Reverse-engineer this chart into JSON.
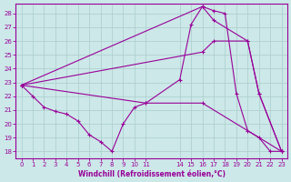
{
  "xlabel": "Windchill (Refroidissement éolien,°C)",
  "bg_color": "#cce8e8",
  "line_color": "#990099",
  "grid_color": "#aacccc",
  "xlim": [
    -0.5,
    23.5
  ],
  "ylim": [
    17.5,
    28.7
  ],
  "xticks": [
    0,
    1,
    2,
    3,
    4,
    5,
    6,
    7,
    8,
    9,
    10,
    11,
    14,
    15,
    16,
    17,
    18,
    19,
    20,
    21,
    22,
    23
  ],
  "yticks": [
    18,
    19,
    20,
    21,
    22,
    23,
    24,
    25,
    26,
    27,
    28
  ],
  "lines": [
    {
      "x": [
        0,
        1,
        2,
        3,
        4,
        5,
        6,
        7,
        8,
        9,
        10,
        11,
        14,
        15,
        16,
        17,
        18,
        19,
        20,
        21,
        22,
        23
      ],
      "y": [
        22.8,
        22.0,
        21.2,
        20.9,
        20.7,
        20.2,
        19.2,
        18.7,
        18.0,
        20.0,
        21.2,
        21.5,
        23.2,
        27.2,
        28.5,
        28.2,
        28.0,
        22.2,
        19.5,
        19.0,
        18.0,
        18.0
      ]
    },
    {
      "x": [
        0,
        16,
        17,
        20,
        21,
        23
      ],
      "y": [
        22.8,
        28.5,
        27.5,
        26.0,
        22.2,
        18.0
      ]
    },
    {
      "x": [
        0,
        16,
        17,
        20,
        21,
        23
      ],
      "y": [
        22.8,
        25.2,
        26.0,
        26.0,
        22.2,
        18.0
      ]
    },
    {
      "x": [
        0,
        11,
        16,
        23
      ],
      "y": [
        22.8,
        21.5,
        21.5,
        18.0
      ]
    }
  ]
}
